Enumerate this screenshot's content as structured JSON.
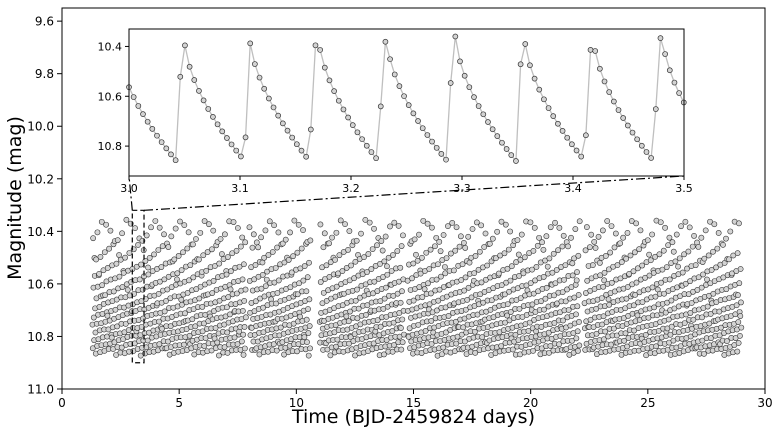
{
  "chart_data": [
    {
      "id": "main",
      "type": "scatter",
      "xlabel": "Time (BJD-2459824 days)",
      "ylabel": "Magnitude (mag)",
      "xlim": [
        0,
        30
      ],
      "ylim": [
        11.0,
        9.55
      ],
      "y_inverted": true,
      "xticks": [
        0,
        5,
        10,
        15,
        20,
        25,
        30
      ],
      "yticks": [
        9.6,
        9.8,
        10.0,
        10.2,
        10.4,
        10.6,
        10.8,
        11.0
      ],
      "ytick_labels": [
        "9.6",
        "9.8",
        "10.0",
        "10.2",
        "10.4",
        "10.6",
        "10.8",
        "11.0"
      ],
      "marker_color": "#d3d3d3",
      "marker_edge": "#333333",
      "segments": [
        {
          "x_start": 1.3,
          "x_end": 7.85
        },
        {
          "x_start": 8.0,
          "x_end": 10.6
        },
        {
          "x_start": 11.0,
          "x_end": 14.6
        },
        {
          "x_start": 14.75,
          "x_end": 22.1
        },
        {
          "x_start": 22.3,
          "x_end": 29.0
        }
      ],
      "magnitude_range": [
        10.36,
        10.87
      ],
      "pulsation_period_days": 0.0618,
      "zoom_box": {
        "x": [
          3.0,
          3.5
        ],
        "y": [
          10.32,
          10.9
        ]
      }
    },
    {
      "id": "inset",
      "type": "line",
      "xlim": [
        3.0,
        3.5
      ],
      "ylim": [
        10.92,
        10.33
      ],
      "y_inverted": true,
      "xticks": [
        3.0,
        3.1,
        3.2,
        3.3,
        3.4,
        3.5
      ],
      "xtick_labels": [
        "3.0",
        "3.1",
        "3.2",
        "3.3",
        "3.4",
        "3.5"
      ],
      "yticks": [
        10.4,
        10.6,
        10.8
      ],
      "ytick_labels": [
        "10.4",
        "10.6",
        "10.8"
      ],
      "line_color": "#bfbfbf",
      "marker_color": "#d3d3d3",
      "marker_edge": "#333333",
      "cadence_days": 0.0042,
      "maxima_times": [
        3.05,
        3.1085,
        3.1705,
        3.2325,
        3.2945,
        3.3565,
        3.4185,
        3.4805
      ],
      "maxima_mag": [
        10.37,
        10.35,
        10.35,
        10.37,
        10.36,
        10.36,
        10.36,
        10.35
      ],
      "minimum_mag": 10.86,
      "rise_fraction": 0.12
    }
  ]
}
